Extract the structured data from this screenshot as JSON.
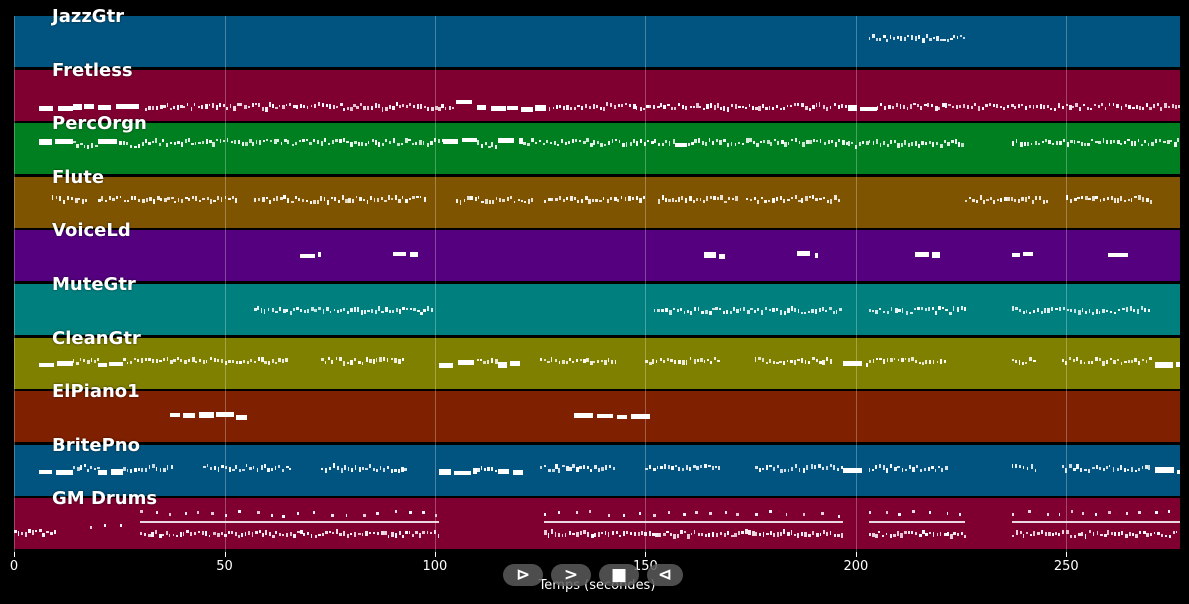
{
  "chart_data": {
    "type": "piano-roll",
    "xlabel": "Temps (secondes)",
    "xlim": [
      0,
      277
    ],
    "xticks": [
      0,
      50,
      100,
      150,
      200,
      250
    ],
    "grid": true,
    "tracks": [
      {
        "name": "JazzGtr",
        "color": "#00547f",
        "segments": [
          [
            203,
            226,
            0.44,
            "dense"
          ]
        ]
      },
      {
        "name": "Fretless",
        "color": "#7f0030",
        "segments": [
          [
            6,
            14,
            0.78,
            "block"
          ],
          [
            14,
            26,
            0.75,
            "block"
          ],
          [
            26,
            31,
            0.71,
            "block"
          ],
          [
            31,
            105,
            0.73,
            "dense"
          ],
          [
            105,
            110,
            0.66,
            "block"
          ],
          [
            110,
            117,
            0.74,
            "block"
          ],
          [
            117,
            127,
            0.77,
            "block"
          ],
          [
            127,
            198,
            0.73,
            "dense"
          ],
          [
            198,
            205,
            0.77,
            "block"
          ],
          [
            205,
            277,
            0.73,
            "dense"
          ]
        ]
      },
      {
        "name": "PercOrgn",
        "color": "#007f20",
        "segments": [
          [
            6,
            14,
            0.35,
            "block"
          ],
          [
            14,
            20,
            0.42,
            "dense"
          ],
          [
            20,
            25,
            0.35,
            "block"
          ],
          [
            25,
            31,
            0.42,
            "dense"
          ],
          [
            31,
            98,
            0.38,
            "dense"
          ],
          [
            98,
            102,
            0.38,
            "dense"
          ],
          [
            102,
            110,
            0.34,
            "block"
          ],
          [
            110,
            115,
            0.42,
            "dense"
          ],
          [
            115,
            121,
            0.35,
            "block"
          ],
          [
            121,
            157,
            0.38,
            "dense"
          ],
          [
            157,
            160,
            0.42,
            "block"
          ],
          [
            160,
            198,
            0.38,
            "dense"
          ],
          [
            198,
            203,
            0.42,
            "dense"
          ],
          [
            203,
            226,
            0.4,
            "dense"
          ],
          [
            237,
            277,
            0.38,
            "dense"
          ]
        ]
      },
      {
        "name": "Flute",
        "color": "#7f5400",
        "segments": [
          [
            9,
            18,
            0.45,
            "dense"
          ],
          [
            20,
            38,
            0.45,
            "dense"
          ],
          [
            38,
            53,
            0.45,
            "dense"
          ],
          [
            57,
            98,
            0.45,
            "dense"
          ],
          [
            105,
            124,
            0.45,
            "dense"
          ],
          [
            126,
            150,
            0.45,
            "dense"
          ],
          [
            153,
            172,
            0.45,
            "dense"
          ],
          [
            174,
            196,
            0.45,
            "dense"
          ],
          [
            226,
            246,
            0.45,
            "dense"
          ],
          [
            250,
            270,
            0.45,
            "dense"
          ]
        ]
      },
      {
        "name": "VoiceLd",
        "color": "#54007f",
        "segments": [
          [
            68,
            73,
            0.48,
            "block"
          ],
          [
            90,
            96,
            0.48,
            "block"
          ],
          [
            164,
            169,
            0.48,
            "block"
          ],
          [
            186,
            191,
            0.48,
            "block"
          ],
          [
            214,
            220,
            0.48,
            "block"
          ],
          [
            237,
            242,
            0.48,
            "block"
          ],
          [
            260,
            265,
            0.48,
            "block"
          ]
        ]
      },
      {
        "name": "MuteGtr",
        "color": "#007f7f",
        "segments": [
          [
            57,
            100,
            0.52,
            "dense"
          ],
          [
            152,
            197,
            0.52,
            "dense"
          ],
          [
            203,
            226,
            0.52,
            "dense"
          ],
          [
            237,
            270,
            0.52,
            "dense"
          ]
        ]
      },
      {
        "name": "CleanGtr",
        "color": "#7f7f00",
        "segments": [
          [
            6,
            14,
            0.52,
            "block"
          ],
          [
            14,
            20,
            0.46,
            "dense"
          ],
          [
            20,
            26,
            0.52,
            "block"
          ],
          [
            26,
            65,
            0.46,
            "dense"
          ],
          [
            73,
            93,
            0.46,
            "dense"
          ],
          [
            101,
            110,
            0.52,
            "block"
          ],
          [
            110,
            115,
            0.46,
            "dense"
          ],
          [
            115,
            121,
            0.52,
            "block"
          ],
          [
            125,
            143,
            0.46,
            "dense"
          ],
          [
            150,
            168,
            0.46,
            "dense"
          ],
          [
            176,
            194,
            0.46,
            "dense"
          ],
          [
            197,
            203,
            0.52,
            "block"
          ],
          [
            203,
            222,
            0.46,
            "dense"
          ],
          [
            237,
            243,
            0.46,
            "dense"
          ],
          [
            249,
            270,
            0.46,
            "dense"
          ],
          [
            271,
            277,
            0.52,
            "block"
          ]
        ]
      },
      {
        "name": "ElPiano1",
        "color": "#7f2000",
        "segments": [
          [
            37,
            56,
            0.49,
            "block"
          ],
          [
            133,
            152,
            0.49,
            "block"
          ]
        ]
      },
      {
        "name": "BritePno",
        "color": "#00547f",
        "segments": [
          [
            6,
            14,
            0.52,
            "block"
          ],
          [
            14,
            20,
            0.46,
            "dense"
          ],
          [
            20,
            26,
            0.52,
            "block"
          ],
          [
            26,
            38,
            0.46,
            "dense"
          ],
          [
            45,
            66,
            0.46,
            "dense"
          ],
          [
            73,
            93,
            0.46,
            "dense"
          ],
          [
            101,
            110,
            0.52,
            "block"
          ],
          [
            110,
            115,
            0.46,
            "dense"
          ],
          [
            115,
            121,
            0.52,
            "block"
          ],
          [
            125,
            143,
            0.46,
            "dense"
          ],
          [
            150,
            168,
            0.46,
            "dense"
          ],
          [
            176,
            197,
            0.46,
            "dense"
          ],
          [
            197,
            203,
            0.52,
            "block"
          ],
          [
            203,
            222,
            0.46,
            "dense"
          ],
          [
            237,
            243,
            0.46,
            "dense"
          ],
          [
            249,
            270,
            0.46,
            "dense"
          ],
          [
            271,
            277,
            0.52,
            "block"
          ]
        ]
      },
      {
        "name": "GM Drums",
        "color": "#7f0030",
        "segments": [
          [
            0,
            10,
            0.68,
            "dense"
          ],
          [
            18,
            26,
            0.55,
            "sparse"
          ],
          [
            30,
            101,
            0.46,
            "line"
          ],
          [
            30,
            101,
            0.7,
            "dense"
          ],
          [
            30,
            101,
            0.3,
            "sparse"
          ],
          [
            126,
            197,
            0.46,
            "line"
          ],
          [
            126,
            197,
            0.7,
            "dense"
          ],
          [
            126,
            197,
            0.3,
            "sparse"
          ],
          [
            203,
            226,
            0.46,
            "line"
          ],
          [
            203,
            226,
            0.7,
            "dense"
          ],
          [
            203,
            226,
            0.3,
            "sparse"
          ],
          [
            237,
            277,
            0.46,
            "line"
          ],
          [
            237,
            277,
            0.7,
            "dense"
          ],
          [
            237,
            277,
            0.3,
            "sparse"
          ]
        ]
      }
    ]
  },
  "controls": {
    "play_label": "⊳",
    "forward_label": ">",
    "stop_label": "■",
    "back_label": "⊲"
  }
}
